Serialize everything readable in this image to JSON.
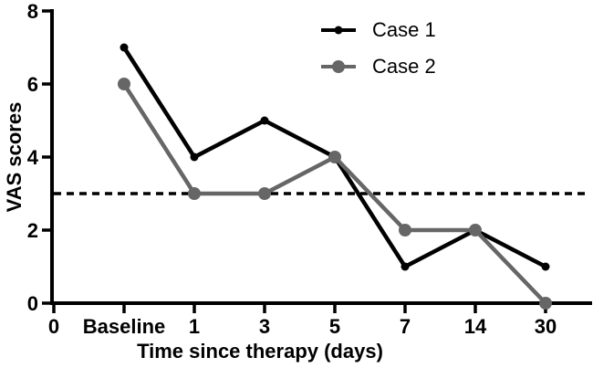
{
  "chart_data": {
    "type": "line",
    "title": "",
    "xlabel": "Time since therapy (days)",
    "ylabel": "VAS scores",
    "categories": [
      "0",
      "Baseline",
      "1",
      "3",
      "5",
      "7",
      "14",
      "30"
    ],
    "y_ticks": [
      0,
      2,
      4,
      6,
      8
    ],
    "ylim": [
      0,
      8
    ],
    "grid": false,
    "legend_position": "top-center",
    "reference_line": {
      "y": 3,
      "style": "dashed",
      "color": "#000000"
    },
    "series": [
      {
        "name": "Case 1",
        "color": "#000000",
        "marker": "circle",
        "marker_radius": 4.5,
        "line_width": 4.5,
        "values": [
          null,
          7,
          4,
          5,
          4,
          1,
          2,
          1
        ]
      },
      {
        "name": "Case 2",
        "color": "#666666",
        "marker": "circle",
        "marker_radius": 7,
        "line_width": 4.5,
        "values": [
          null,
          6,
          3,
          3,
          4,
          2,
          2,
          0
        ]
      }
    ]
  },
  "colors": {
    "background": "#ffffff",
    "axis": "#000000",
    "text": "#000000"
  }
}
